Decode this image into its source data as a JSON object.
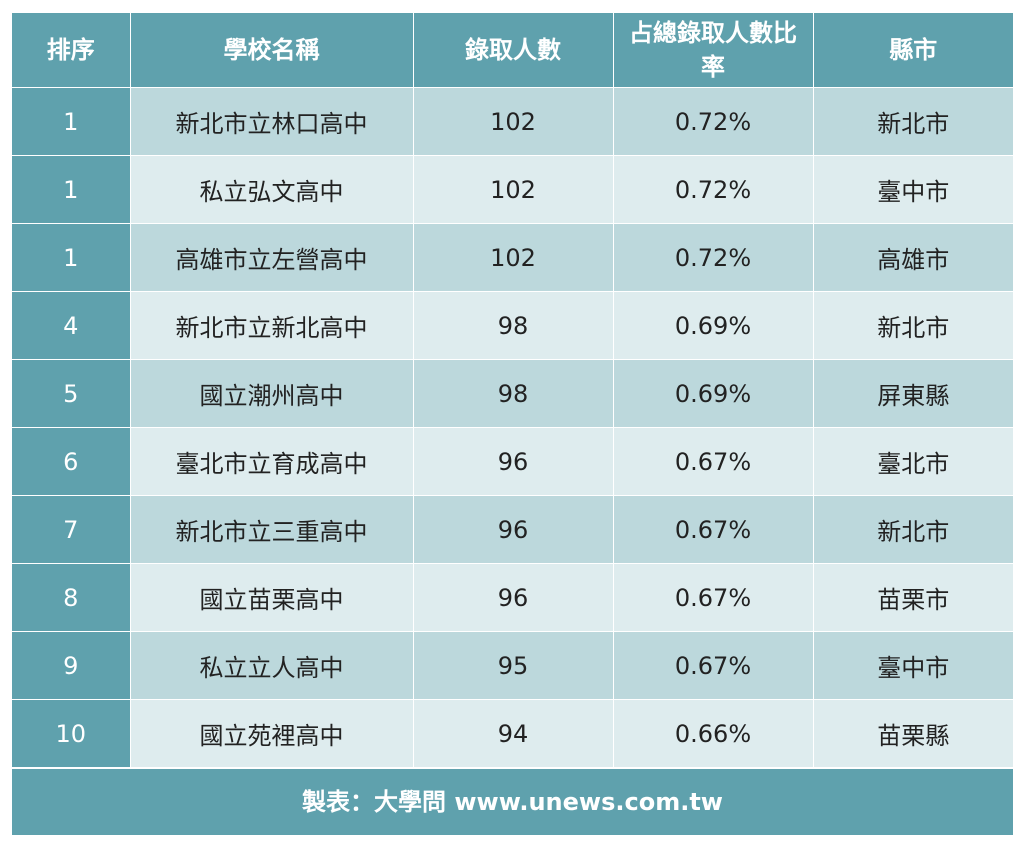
{
  "table": {
    "headers": [
      "排序",
      "學校名稱",
      "錄取人數",
      "占總錄取人數比率",
      "縣市"
    ],
    "rows": [
      {
        "rank": "1",
        "school": "新北市立林口高中",
        "admitted": "102",
        "ratio": "0.72%",
        "city": "新北市"
      },
      {
        "rank": "1",
        "school": "私立弘文高中",
        "admitted": "102",
        "ratio": "0.72%",
        "city": "臺中市"
      },
      {
        "rank": "1",
        "school": "高雄市立左營高中",
        "admitted": "102",
        "ratio": "0.72%",
        "city": "高雄市"
      },
      {
        "rank": "4",
        "school": "新北市立新北高中",
        "admitted": "98",
        "ratio": "0.69%",
        "city": "新北市"
      },
      {
        "rank": "5",
        "school": "國立潮州高中",
        "admitted": "98",
        "ratio": "0.69%",
        "city": "屏東縣"
      },
      {
        "rank": "6",
        "school": "臺北市立育成高中",
        "admitted": "96",
        "ratio": "0.67%",
        "city": "臺北市"
      },
      {
        "rank": "7",
        "school": "新北市立三重高中",
        "admitted": "96",
        "ratio": "0.67%",
        "city": "新北市"
      },
      {
        "rank": "8",
        "school": "國立苗栗高中",
        "admitted": "96",
        "ratio": "0.67%",
        "city": "苗栗市"
      },
      {
        "rank": "9",
        "school": "私立立人高中",
        "admitted": "95",
        "ratio": "0.67%",
        "city": "臺中市"
      },
      {
        "rank": "10",
        "school": "國立苑裡高中",
        "admitted": "94",
        "ratio": "0.66%",
        "city": "苗栗縣"
      }
    ]
  },
  "footer": {
    "credit": "製表：大學問 www.unews.com.tw"
  },
  "colors": {
    "header": "#5fa1ad",
    "row_dark": "#bcd8dc",
    "row_light": "#deecee"
  }
}
